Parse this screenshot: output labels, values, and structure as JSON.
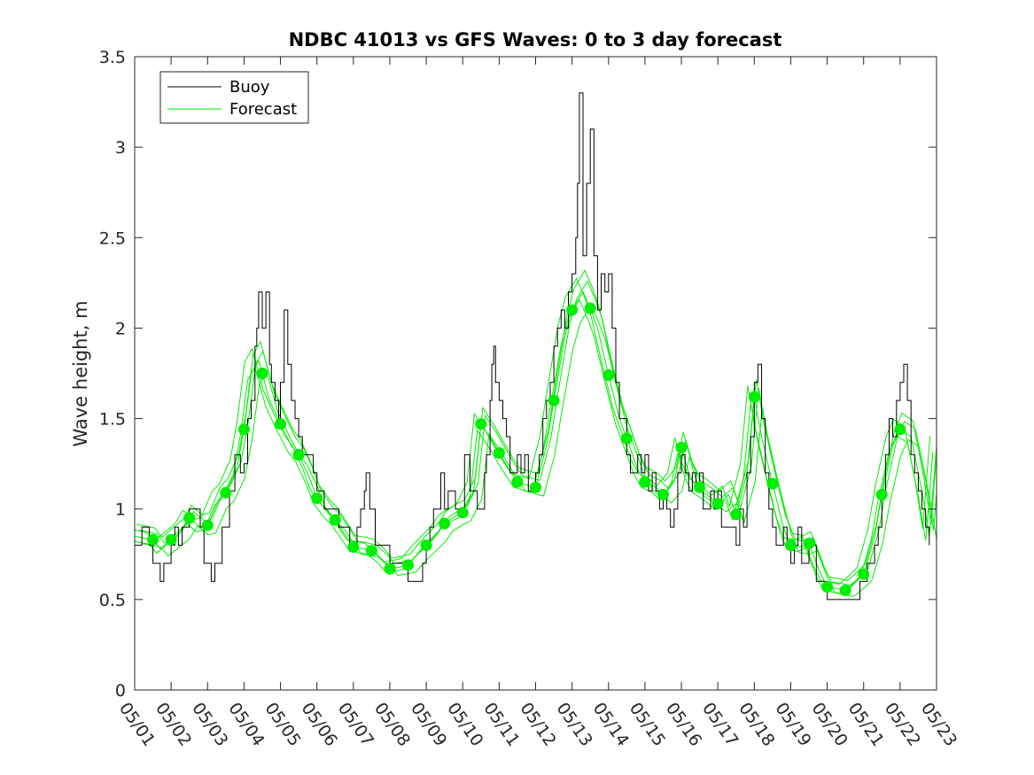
{
  "chart_data": {
    "type": "line",
    "title": "NDBC 41013 vs GFS Waves: 0 to 3 day forecast",
    "xlabel": "",
    "ylabel": "Wave height, m",
    "xlim": [
      "05/01",
      "05/23"
    ],
    "ylim": [
      0,
      3.5
    ],
    "x_tick_labels": [
      "05/01",
      "05/02",
      "05/03",
      "05/04",
      "05/05",
      "05/06",
      "05/07",
      "05/08",
      "05/09",
      "05/10",
      "05/11",
      "05/12",
      "05/13",
      "05/14",
      "05/15",
      "05/16",
      "05/17",
      "05/18",
      "05/19",
      "05/20",
      "05/21",
      "05/22",
      "05/23"
    ],
    "y_ticks": [
      0,
      0.5,
      1,
      1.5,
      2,
      2.5,
      3,
      3.5
    ],
    "y_tick_labels": [
      "0",
      "0.5",
      "1",
      "1.5",
      "2",
      "2.5",
      "3",
      "3.5"
    ],
    "grid": false,
    "legend_position": "top-left",
    "x_unit_note": "x values are days elapsed since 05/01 00:00",
    "colors": {
      "buoy": "#000000",
      "forecast": "#00ee00"
    },
    "series": [
      {
        "name": "Buoy",
        "style": "thin-line",
        "points": [
          [
            0,
            0.8
          ],
          [
            0.2,
            0.9
          ],
          [
            0.4,
            0.8
          ],
          [
            0.5,
            0.7
          ],
          [
            0.7,
            0.6
          ],
          [
            0.8,
            0.7
          ],
          [
            1.0,
            0.8
          ],
          [
            1.1,
            0.9
          ],
          [
            1.2,
            0.8
          ],
          [
            1.3,
            0.9
          ],
          [
            1.5,
            1.0
          ],
          [
            1.8,
            0.9
          ],
          [
            1.9,
            0.7
          ],
          [
            2.1,
            0.6
          ],
          [
            2.2,
            0.7
          ],
          [
            2.4,
            0.9
          ],
          [
            2.6,
            1.1
          ],
          [
            2.75,
            1.3
          ],
          [
            2.9,
            1.2
          ],
          [
            3.0,
            1.25
          ],
          [
            3.1,
            1.5
          ],
          [
            3.2,
            1.6
          ],
          [
            3.3,
            1.9
          ],
          [
            3.35,
            2.0
          ],
          [
            3.4,
            2.2
          ],
          [
            3.5,
            2.0
          ],
          [
            3.6,
            2.2
          ],
          [
            3.7,
            1.8
          ],
          [
            3.75,
            1.7
          ],
          [
            3.85,
            1.6
          ],
          [
            3.95,
            1.5
          ],
          [
            4.0,
            1.7
          ],
          [
            4.1,
            2.1
          ],
          [
            4.2,
            1.8
          ],
          [
            4.3,
            1.6
          ],
          [
            4.4,
            1.5
          ],
          [
            4.5,
            1.4
          ],
          [
            4.6,
            1.3
          ],
          [
            4.8,
            1.3
          ],
          [
            4.9,
            1.2
          ],
          [
            5.0,
            1.1
          ],
          [
            5.2,
            1.0
          ],
          [
            5.4,
            1.0
          ],
          [
            5.6,
            0.9
          ],
          [
            5.8,
            0.9
          ],
          [
            5.9,
            0.8
          ],
          [
            6.1,
            0.9
          ],
          [
            6.2,
            1.0
          ],
          [
            6.3,
            1.1
          ],
          [
            6.35,
            1.2
          ],
          [
            6.45,
            1.0
          ],
          [
            6.6,
            0.8
          ],
          [
            6.8,
            0.8
          ],
          [
            7.0,
            0.7
          ],
          [
            7.2,
            0.7
          ],
          [
            7.4,
            0.7
          ],
          [
            7.5,
            0.6
          ],
          [
            7.7,
            0.6
          ],
          [
            7.9,
            0.7
          ],
          [
            8.0,
            0.8
          ],
          [
            8.1,
            0.9
          ],
          [
            8.2,
            1.0
          ],
          [
            8.3,
            1.0
          ],
          [
            8.4,
            1.2
          ],
          [
            8.5,
            1.0
          ],
          [
            8.6,
            1.1
          ],
          [
            8.8,
            1.0
          ],
          [
            8.9,
            1.0
          ],
          [
            9.05,
            1.3
          ],
          [
            9.2,
            1.1
          ],
          [
            9.3,
            1.1
          ],
          [
            9.4,
            1.0
          ],
          [
            9.5,
            1.0
          ],
          [
            9.6,
            1.2
          ],
          [
            9.65,
            1.3
          ],
          [
            9.75,
            1.6
          ],
          [
            9.8,
            1.8
          ],
          [
            9.85,
            1.9
          ],
          [
            9.9,
            1.7
          ],
          [
            10.0,
            1.6
          ],
          [
            10.1,
            1.5
          ],
          [
            10.2,
            1.4
          ],
          [
            10.3,
            1.2
          ],
          [
            10.4,
            1.2
          ],
          [
            10.5,
            1.3
          ],
          [
            10.6,
            1.2
          ],
          [
            10.7,
            1.3
          ],
          [
            10.8,
            1.1
          ],
          [
            10.9,
            1.1
          ],
          [
            11.0,
            1.2
          ],
          [
            11.1,
            1.3
          ],
          [
            11.2,
            1.5
          ],
          [
            11.3,
            1.6
          ],
          [
            11.4,
            1.7
          ],
          [
            11.5,
            1.9
          ],
          [
            11.6,
            2.0
          ],
          [
            11.7,
            2.1
          ],
          [
            11.8,
            2.0
          ],
          [
            11.9,
            2.2
          ],
          [
            12.0,
            2.3
          ],
          [
            12.1,
            2.5
          ],
          [
            12.15,
            2.8
          ],
          [
            12.2,
            3.3
          ],
          [
            12.3,
            2.4
          ],
          [
            12.4,
            2.8
          ],
          [
            12.5,
            3.1
          ],
          [
            12.6,
            2.4
          ],
          [
            12.7,
            2.1
          ],
          [
            12.8,
            2.3
          ],
          [
            12.9,
            2.2
          ],
          [
            13.0,
            2.3
          ],
          [
            13.1,
            2.0
          ],
          [
            13.2,
            1.7
          ],
          [
            13.3,
            1.5
          ],
          [
            13.4,
            1.5
          ],
          [
            13.5,
            1.3
          ],
          [
            13.6,
            1.2
          ],
          [
            13.8,
            1.3
          ],
          [
            13.9,
            1.2
          ],
          [
            14.0,
            1.3
          ],
          [
            14.1,
            1.1
          ],
          [
            14.2,
            1.2
          ],
          [
            14.3,
            1.1
          ],
          [
            14.4,
            1.0
          ],
          [
            14.5,
            1.1
          ],
          [
            14.6,
            1.0
          ],
          [
            14.7,
            0.9
          ],
          [
            14.8,
            1.0
          ],
          [
            14.9,
            1.2
          ],
          [
            15.0,
            1.3
          ],
          [
            15.1,
            1.2
          ],
          [
            15.2,
            1.1
          ],
          [
            15.3,
            1.2
          ],
          [
            15.4,
            1.1
          ],
          [
            15.5,
            1.2
          ],
          [
            15.6,
            1.0
          ],
          [
            15.7,
            1.0
          ],
          [
            15.8,
            1.1
          ],
          [
            15.9,
            1.0
          ],
          [
            16.0,
            1.1
          ],
          [
            16.1,
            0.9
          ],
          [
            16.3,
            0.9
          ],
          [
            16.5,
            0.8
          ],
          [
            16.6,
            1.0
          ],
          [
            16.7,
            0.9
          ],
          [
            16.8,
            1.2
          ],
          [
            16.9,
            1.4
          ],
          [
            17.0,
            1.7
          ],
          [
            17.1,
            1.8
          ],
          [
            17.2,
            1.5
          ],
          [
            17.3,
            1.2
          ],
          [
            17.4,
            1.0
          ],
          [
            17.5,
            0.9
          ],
          [
            17.6,
            0.8
          ],
          [
            17.7,
            0.8
          ],
          [
            17.8,
            0.9
          ],
          [
            17.9,
            0.8
          ],
          [
            18.0,
            0.7
          ],
          [
            18.1,
            0.8
          ],
          [
            18.2,
            0.9
          ],
          [
            18.3,
            0.7
          ],
          [
            18.5,
            0.8
          ],
          [
            18.7,
            0.6
          ],
          [
            18.9,
            0.6
          ],
          [
            19.0,
            0.5
          ],
          [
            19.3,
            0.5
          ],
          [
            19.6,
            0.5
          ],
          [
            19.8,
            0.5
          ],
          [
            19.9,
            0.6
          ],
          [
            20.0,
            0.6
          ],
          [
            20.1,
            0.7
          ],
          [
            20.3,
            0.8
          ],
          [
            20.4,
            0.9
          ],
          [
            20.5,
            1.1
          ],
          [
            20.6,
            1.3
          ],
          [
            20.7,
            1.5
          ],
          [
            20.8,
            1.4
          ],
          [
            20.9,
            1.6
          ],
          [
            21.0,
            1.7
          ],
          [
            21.1,
            1.8
          ],
          [
            21.2,
            1.6
          ],
          [
            21.3,
            1.3
          ],
          [
            21.4,
            1.2
          ],
          [
            21.5,
            1.1
          ],
          [
            21.6,
            1.0
          ],
          [
            21.7,
            0.9
          ],
          [
            21.8,
            0.8
          ]
        ]
      },
      {
        "name": "Forecast",
        "style": "thin-lines",
        "points": [
          [
            0,
            0.85
          ],
          [
            0.5,
            0.83
          ],
          [
            0.7,
            0.78
          ],
          [
            1.0,
            0.83
          ],
          [
            1.3,
            0.88
          ],
          [
            1.5,
            0.95
          ],
          [
            1.8,
            0.9
          ],
          [
            2.0,
            0.91
          ],
          [
            2.3,
            1.05
          ],
          [
            2.5,
            1.09
          ],
          [
            2.8,
            1.22
          ],
          [
            3.0,
            1.44
          ],
          [
            3.2,
            1.75
          ],
          [
            3.4,
            1.82
          ],
          [
            3.5,
            1.75
          ],
          [
            3.7,
            1.6
          ],
          [
            4.0,
            1.47
          ],
          [
            4.3,
            1.35
          ],
          [
            4.5,
            1.3
          ],
          [
            4.8,
            1.17
          ],
          [
            5.0,
            1.06
          ],
          [
            5.3,
            0.98
          ],
          [
            5.5,
            0.94
          ],
          [
            5.8,
            0.85
          ],
          [
            6.0,
            0.79
          ],
          [
            6.3,
            0.78
          ],
          [
            6.5,
            0.77
          ],
          [
            6.8,
            0.72
          ],
          [
            7.0,
            0.67
          ],
          [
            7.3,
            0.68
          ],
          [
            7.5,
            0.69
          ],
          [
            7.8,
            0.76
          ],
          [
            8.0,
            0.8
          ],
          [
            8.3,
            0.86
          ],
          [
            8.5,
            0.92
          ],
          [
            8.8,
            0.96
          ],
          [
            9.0,
            0.98
          ],
          [
            9.3,
            1.1
          ],
          [
            9.5,
            1.47
          ],
          [
            9.8,
            1.38
          ],
          [
            10.0,
            1.31
          ],
          [
            10.3,
            1.21
          ],
          [
            10.5,
            1.15
          ],
          [
            10.8,
            1.13
          ],
          [
            11.0,
            1.12
          ],
          [
            11.3,
            1.35
          ],
          [
            11.5,
            1.6
          ],
          [
            11.8,
            1.95
          ],
          [
            12.0,
            2.1
          ],
          [
            12.3,
            2.2
          ],
          [
            12.5,
            2.11
          ],
          [
            12.7,
            2.0
          ],
          [
            13.0,
            1.74
          ],
          [
            13.3,
            1.5
          ],
          [
            13.5,
            1.39
          ],
          [
            13.8,
            1.22
          ],
          [
            14.0,
            1.15
          ],
          [
            14.3,
            1.12
          ],
          [
            14.5,
            1.08
          ],
          [
            14.8,
            1.15
          ],
          [
            15.0,
            1.34
          ],
          [
            15.2,
            1.2
          ],
          [
            15.4,
            1.12
          ],
          [
            15.7,
            1.08
          ],
          [
            16.0,
            1.03
          ],
          [
            16.3,
            1.08
          ],
          [
            16.5,
            0.97
          ],
          [
            16.8,
            1.2
          ],
          [
            17.0,
            1.62
          ],
          [
            17.2,
            1.4
          ],
          [
            17.5,
            1.14
          ],
          [
            17.8,
            0.9
          ],
          [
            18.0,
            0.8
          ],
          [
            18.3,
            0.79
          ],
          [
            18.5,
            0.81
          ],
          [
            18.8,
            0.65
          ],
          [
            19.0,
            0.57
          ],
          [
            19.3,
            0.56
          ],
          [
            19.5,
            0.55
          ],
          [
            19.8,
            0.6
          ],
          [
            20.0,
            0.64
          ],
          [
            20.3,
            0.85
          ],
          [
            20.5,
            1.08
          ],
          [
            20.8,
            1.35
          ],
          [
            21.0,
            1.44
          ],
          [
            21.3,
            1.4
          ],
          [
            21.6,
            1.1
          ],
          [
            21.8,
            0.85
          ],
          [
            22.0,
            1.35
          ]
        ]
      }
    ],
    "forecast_markers": {
      "x": [
        0.5,
        1.0,
        1.5,
        2.0,
        2.5,
        3.0,
        3.5,
        4.0,
        4.5,
        5.0,
        5.5,
        6.0,
        6.5,
        7.0,
        7.5,
        8.0,
        8.5,
        9.0,
        9.5,
        10.0,
        10.5,
        11.0,
        11.5,
        12.0,
        12.5,
        13.0,
        13.5,
        14.0,
        14.5,
        15.0,
        15.5,
        16.0,
        16.5,
        17.0,
        17.5,
        18.0,
        18.5,
        19.0,
        19.5,
        20.0,
        20.5,
        21.0
      ],
      "y": [
        0.83,
        0.83,
        0.95,
        0.91,
        1.09,
        1.44,
        1.75,
        1.47,
        1.3,
        1.06,
        0.94,
        0.79,
        0.77,
        0.67,
        0.69,
        0.8,
        0.92,
        0.98,
        1.47,
        1.31,
        1.15,
        1.12,
        1.6,
        2.1,
        2.11,
        1.74,
        1.39,
        1.15,
        1.08,
        1.34,
        1.12,
        1.03,
        0.97,
        1.62,
        1.14,
        0.8,
        0.81,
        0.57,
        0.55,
        0.64,
        1.08,
        1.44
      ]
    }
  }
}
